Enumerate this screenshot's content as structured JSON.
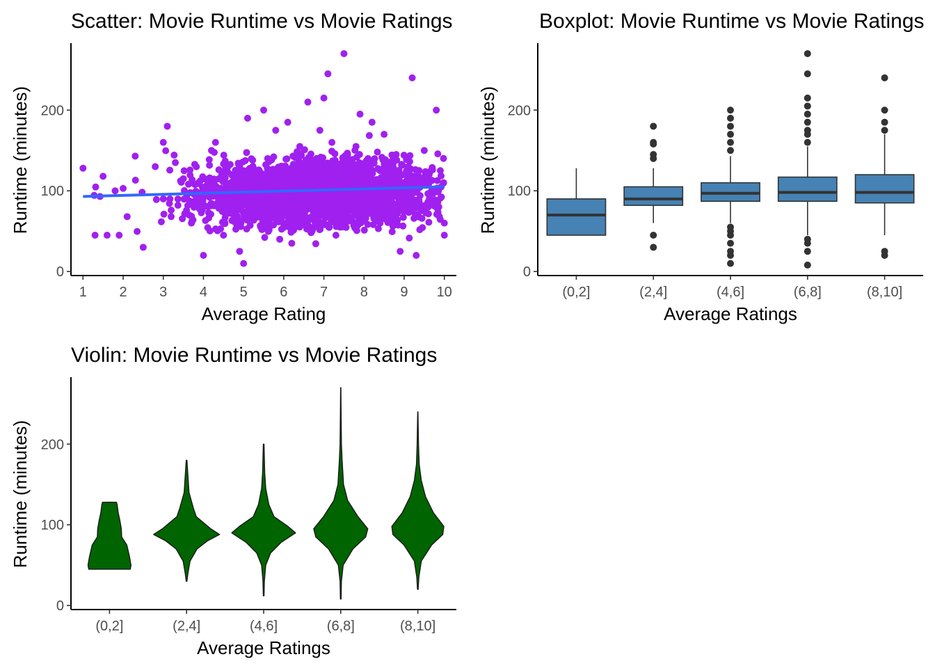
{
  "chart_data": [
    {
      "type": "scatter",
      "title": "Scatter: Movie Runtime vs Movie Ratings",
      "xlabel": "Average Rating",
      "ylabel": "Runtime (minutes)",
      "xlim": [
        0.7,
        10.3
      ],
      "ylim": [
        -5,
        283
      ],
      "x_ticks": [
        1,
        2,
        3,
        4,
        5,
        6,
        7,
        8,
        9,
        10
      ],
      "y_ticks": [
        0,
        100,
        200
      ],
      "point_color": "#A020F0",
      "trend_color": "#3366FF",
      "trend_line": {
        "x": [
          1,
          10
        ],
        "y": [
          93,
          105
        ]
      },
      "points": {
        "x": [
          1.0,
          1.3,
          1.5,
          1.6,
          1.8,
          1.9,
          2.0,
          2.1,
          2.3,
          2.5,
          2.8,
          3.0,
          3.0,
          3.1,
          3.3,
          3.5,
          3.7,
          3.9,
          4.0,
          4.1,
          4.2,
          4.3,
          4.5,
          4.7,
          4.9,
          5.0,
          5.0,
          5.1,
          5.3,
          5.5,
          5.5,
          5.6,
          5.8,
          5.9,
          6.0,
          6.1,
          6.2,
          6.4,
          6.5,
          6.6,
          6.8,
          6.9,
          7.0,
          7.0,
          7.1,
          7.2,
          7.3,
          7.4,
          7.5,
          7.6,
          7.8,
          7.9,
          8.0,
          8.1,
          8.2,
          8.4,
          8.5,
          8.6,
          8.8,
          8.9,
          9.0,
          9.1,
          9.2,
          9.3,
          9.5,
          9.6,
          9.8,
          9.9,
          10.0,
          10.0
        ],
        "y": [
          128,
          45,
          118,
          45,
          100,
          45,
          103,
          68,
          143,
          30,
          130,
          160,
          90,
          180,
          135,
          115,
          60,
          110,
          20,
          95,
          150,
          160,
          45,
          120,
          25,
          10,
          125,
          190,
          80,
          200,
          55,
          140,
          175,
          40,
          115,
          185,
          35,
          155,
          120,
          210,
          60,
          175,
          215,
          125,
          245,
          160,
          45,
          130,
          270,
          75,
          155,
          195,
          100,
          140,
          185,
          60,
          170,
          110,
          145,
          25,
          90,
          130,
          240,
          20,
          150,
          80,
          200,
          125,
          60,
          45
        ]
      }
    },
    {
      "type": "box",
      "title": "Boxplot: Movie Runtime vs Movie Ratings",
      "xlabel": "Average Ratings",
      "ylabel": "Runtime (minutes)",
      "ylim": [
        -5,
        283
      ],
      "y_ticks": [
        0,
        100,
        200
      ],
      "fill_color": "#4682B4",
      "categories": [
        "(0,2]",
        "(2,4]",
        "(4,6]",
        "(6,8]",
        "(8,10]"
      ],
      "boxes": [
        {
          "whisker_low": 45,
          "q1": 45,
          "median": 70,
          "q3": 90,
          "whisker_high": 128,
          "outliers": []
        },
        {
          "whisker_low": 60,
          "q1": 82,
          "median": 90,
          "q3": 105,
          "whisker_high": 128,
          "outliers": [
            30,
            45,
            140,
            145,
            158,
            160,
            180
          ]
        },
        {
          "whisker_low": 60,
          "q1": 87,
          "median": 97,
          "q3": 110,
          "whisker_high": 143,
          "outliers": [
            10,
            20,
            25,
            35,
            45,
            50,
            55,
            150,
            160,
            170,
            180,
            190,
            200
          ]
        },
        {
          "whisker_low": 45,
          "q1": 87,
          "median": 98,
          "q3": 117,
          "whisker_high": 155,
          "outliers": [
            8,
            25,
            35,
            40,
            160,
            170,
            175,
            185,
            195,
            205,
            215,
            245,
            270
          ]
        },
        {
          "whisker_low": 45,
          "q1": 85,
          "median": 98,
          "q3": 120,
          "whisker_high": 170,
          "outliers": [
            20,
            25,
            175,
            185,
            200,
            240
          ]
        }
      ]
    },
    {
      "type": "violin",
      "title": "Violin: Movie Runtime vs Movie Ratings",
      "xlabel": "Average Ratings",
      "ylabel": "Runtime (minutes)",
      "ylim": [
        -5,
        283
      ],
      "y_ticks": [
        0,
        100,
        200
      ],
      "fill_color": "#006400",
      "categories": [
        "(0,2]",
        "(2,4]",
        "(4,6]",
        "(6,8]",
        "(8,10]"
      ],
      "violins": [
        {
          "range": [
            45,
            128
          ],
          "profile": [
            [
              45,
              0.6
            ],
            [
              50,
              0.62
            ],
            [
              60,
              0.58
            ],
            [
              75,
              0.5
            ],
            [
              85,
              0.35
            ],
            [
              95,
              0.34
            ],
            [
              105,
              0.3
            ],
            [
              115,
              0.25
            ],
            [
              125,
              0.22
            ],
            [
              128,
              0.2
            ]
          ]
        },
        {
          "range": [
            30,
            180
          ],
          "profile": [
            [
              30,
              0.01
            ],
            [
              40,
              0.04
            ],
            [
              55,
              0.1
            ],
            [
              70,
              0.3
            ],
            [
              80,
              0.6
            ],
            [
              88,
              0.95
            ],
            [
              95,
              0.7
            ],
            [
              110,
              0.28
            ],
            [
              120,
              0.2
            ],
            [
              140,
              0.07
            ],
            [
              160,
              0.04
            ],
            [
              180,
              0.01
            ]
          ]
        },
        {
          "range": [
            12,
            200
          ],
          "profile": [
            [
              12,
              0.01
            ],
            [
              30,
              0.02
            ],
            [
              50,
              0.06
            ],
            [
              65,
              0.2
            ],
            [
              78,
              0.5
            ],
            [
              90,
              0.92
            ],
            [
              98,
              0.7
            ],
            [
              110,
              0.3
            ],
            [
              125,
              0.15
            ],
            [
              145,
              0.06
            ],
            [
              165,
              0.03
            ],
            [
              200,
              0.01
            ]
          ]
        },
        {
          "range": [
            8,
            270
          ],
          "profile": [
            [
              8,
              0.01
            ],
            [
              30,
              0.02
            ],
            [
              50,
              0.07
            ],
            [
              70,
              0.35
            ],
            [
              85,
              0.72
            ],
            [
              95,
              0.78
            ],
            [
              110,
              0.5
            ],
            [
              130,
              0.2
            ],
            [
              150,
              0.08
            ],
            [
              180,
              0.04
            ],
            [
              200,
              0.02
            ],
            [
              240,
              0.01
            ],
            [
              270,
              0.005
            ]
          ]
        },
        {
          "range": [
            20,
            240
          ],
          "profile": [
            [
              20,
              0.01
            ],
            [
              35,
              0.03
            ],
            [
              55,
              0.1
            ],
            [
              75,
              0.4
            ],
            [
              88,
              0.72
            ],
            [
              98,
              0.75
            ],
            [
              115,
              0.45
            ],
            [
              135,
              0.22
            ],
            [
              155,
              0.1
            ],
            [
              175,
              0.04
            ],
            [
              200,
              0.02
            ],
            [
              240,
              0.005
            ]
          ]
        }
      ]
    }
  ]
}
